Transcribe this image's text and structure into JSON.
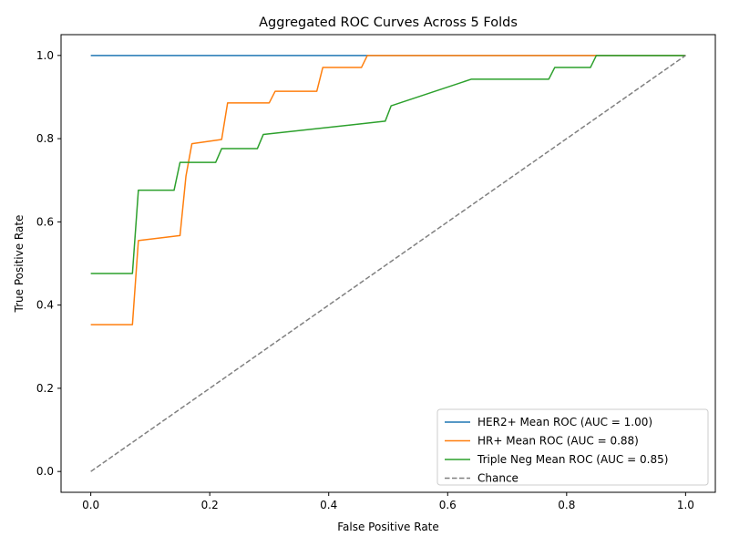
{
  "chart_data": {
    "type": "line",
    "title": "Aggregated ROC Curves Across 5 Folds",
    "xlabel": "False Positive Rate",
    "ylabel": "True Positive Rate",
    "xlim": [
      -0.05,
      1.05
    ],
    "ylim": [
      -0.05,
      1.05
    ],
    "xticks": [
      0.0,
      0.2,
      0.4,
      0.6,
      0.8,
      1.0
    ],
    "yticks": [
      0.0,
      0.2,
      0.4,
      0.6,
      0.8,
      1.0
    ],
    "x_tick_labels": [
      "0.0",
      "0.2",
      "0.4",
      "0.6",
      "0.8",
      "1.0"
    ],
    "y_tick_labels": [
      "0.0",
      "0.2",
      "0.4",
      "0.6",
      "0.8",
      "1.0"
    ],
    "grid": false,
    "legend_position": "lower-right",
    "series": [
      {
        "name": "HER2+ Mean ROC (AUC = 1.00)",
        "color": "#1f77b4",
        "dashed": false,
        "x": [
          0.0,
          1.0
        ],
        "y": [
          1.0,
          1.0
        ]
      },
      {
        "name": "HR+ Mean ROC (AUC = 0.88)",
        "color": "#ff7f0e",
        "dashed": false,
        "x": [
          0.0,
          0.07,
          0.08,
          0.15,
          0.16,
          0.17,
          0.22,
          0.23,
          0.3,
          0.31,
          0.38,
          0.39,
          0.455,
          0.465,
          0.85,
          1.0
        ],
        "y": [
          0.353,
          0.353,
          0.555,
          0.567,
          0.71,
          0.788,
          0.798,
          0.886,
          0.886,
          0.914,
          0.914,
          0.971,
          0.971,
          1.0,
          1.0,
          1.0
        ]
      },
      {
        "name": "Triple Neg Mean ROC (AUC = 0.85)",
        "color": "#2ca02c",
        "dashed": false,
        "x": [
          0.0,
          0.07,
          0.08,
          0.14,
          0.15,
          0.21,
          0.22,
          0.28,
          0.29,
          0.495,
          0.505,
          0.64,
          0.65,
          0.77,
          0.78,
          0.84,
          0.85,
          1.0
        ],
        "y": [
          0.476,
          0.476,
          0.676,
          0.676,
          0.743,
          0.743,
          0.776,
          0.776,
          0.81,
          0.842,
          0.879,
          0.943,
          0.943,
          0.943,
          0.971,
          0.971,
          1.0,
          1.0
        ]
      },
      {
        "name": "Chance",
        "color": "#808080",
        "dashed": true,
        "x": [
          0.0,
          1.0
        ],
        "y": [
          0.0,
          1.0
        ]
      }
    ]
  }
}
